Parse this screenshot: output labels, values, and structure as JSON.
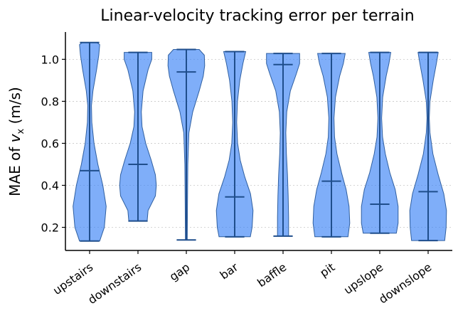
{
  "chart_data": {
    "type": "violin",
    "title": "Linear-velocity tracking error per terrain",
    "ylabel_prefix": "MAE of ",
    "ylabel_var": "v",
    "ylabel_sub": "x",
    "ylabel_suffix": " (m/s)",
    "ylim": [
      0.09,
      1.13
    ],
    "yticks": [
      0.2,
      0.4,
      0.6,
      0.8,
      1.0
    ],
    "ytick_labels": [
      "0.2",
      "0.4",
      "0.6",
      "0.8",
      "1.0"
    ],
    "grid": "y-dotted",
    "categories": [
      "upstairs",
      "downstairs",
      "gap",
      "bar",
      "baffle",
      "pit",
      "upslope",
      "downslope"
    ],
    "min": [
      0.135,
      0.23,
      0.14,
      0.155,
      0.158,
      0.155,
      0.172,
      0.137
    ],
    "max": [
      1.08,
      1.033,
      1.047,
      1.037,
      1.028,
      1.028,
      1.033,
      1.033
    ],
    "median": [
      0.47,
      0.5,
      0.94,
      0.345,
      0.975,
      0.42,
      0.31,
      0.37
    ],
    "density": [
      [
        [
          0.135,
          0.55
        ],
        [
          0.2,
          0.8
        ],
        [
          0.3,
          0.9
        ],
        [
          0.4,
          0.72
        ],
        [
          0.5,
          0.45
        ],
        [
          0.6,
          0.24
        ],
        [
          0.7,
          0.12
        ],
        [
          0.78,
          0.1
        ],
        [
          0.85,
          0.18
        ],
        [
          0.95,
          0.38
        ],
        [
          1.02,
          0.5
        ],
        [
          1.07,
          0.55
        ],
        [
          1.08,
          0.4
        ]
      ],
      [
        [
          0.23,
          0.5
        ],
        [
          0.28,
          0.55
        ],
        [
          0.35,
          0.95
        ],
        [
          0.4,
          1.0
        ],
        [
          0.45,
          0.95
        ],
        [
          0.52,
          0.72
        ],
        [
          0.6,
          0.42
        ],
        [
          0.68,
          0.22
        ],
        [
          0.75,
          0.18
        ],
        [
          0.85,
          0.28
        ],
        [
          0.95,
          0.55
        ],
        [
          1.0,
          0.75
        ],
        [
          1.033,
          0.75
        ]
      ],
      [
        [
          0.14,
          0.05
        ],
        [
          0.3,
          0.06
        ],
        [
          0.5,
          0.08
        ],
        [
          0.65,
          0.14
        ],
        [
          0.75,
          0.35
        ],
        [
          0.85,
          0.7
        ],
        [
          0.92,
          0.92
        ],
        [
          0.97,
          1.0
        ],
        [
          1.02,
          0.98
        ],
        [
          1.047,
          0.7
        ]
      ],
      [
        [
          0.155,
          0.85
        ],
        [
          0.2,
          0.95
        ],
        [
          0.28,
          1.0
        ],
        [
          0.36,
          0.86
        ],
        [
          0.44,
          0.55
        ],
        [
          0.52,
          0.3
        ],
        [
          0.6,
          0.16
        ],
        [
          0.7,
          0.11
        ],
        [
          0.8,
          0.15
        ],
        [
          0.9,
          0.28
        ],
        [
          0.98,
          0.45
        ],
        [
          1.037,
          0.6
        ]
      ],
      [
        [
          0.158,
          0.3
        ],
        [
          0.25,
          0.3
        ],
        [
          0.35,
          0.28
        ],
        [
          0.45,
          0.24
        ],
        [
          0.55,
          0.18
        ],
        [
          0.65,
          0.15
        ],
        [
          0.75,
          0.2
        ],
        [
          0.85,
          0.4
        ],
        [
          0.93,
          0.72
        ],
        [
          0.98,
          0.9
        ],
        [
          1.028,
          0.9
        ]
      ],
      [
        [
          0.155,
          0.9
        ],
        [
          0.22,
          1.0
        ],
        [
          0.3,
          0.96
        ],
        [
          0.38,
          0.8
        ],
        [
          0.46,
          0.55
        ],
        [
          0.55,
          0.3
        ],
        [
          0.63,
          0.17
        ],
        [
          0.72,
          0.14
        ],
        [
          0.82,
          0.22
        ],
        [
          0.92,
          0.45
        ],
        [
          0.98,
          0.65
        ],
        [
          1.028,
          0.75
        ]
      ],
      [
        [
          0.172,
          0.9
        ],
        [
          0.22,
          1.0
        ],
        [
          0.3,
          1.0
        ],
        [
          0.38,
          0.84
        ],
        [
          0.46,
          0.55
        ],
        [
          0.55,
          0.3
        ],
        [
          0.63,
          0.15
        ],
        [
          0.72,
          0.1
        ],
        [
          0.82,
          0.16
        ],
        [
          0.92,
          0.35
        ],
        [
          0.98,
          0.5
        ],
        [
          1.033,
          0.6
        ]
      ],
      [
        [
          0.137,
          0.9
        ],
        [
          0.2,
          0.98
        ],
        [
          0.28,
          1.0
        ],
        [
          0.36,
          0.85
        ],
        [
          0.45,
          0.55
        ],
        [
          0.55,
          0.26
        ],
        [
          0.65,
          0.1
        ],
        [
          0.72,
          0.06
        ],
        [
          0.8,
          0.1
        ],
        [
          0.9,
          0.28
        ],
        [
          0.98,
          0.45
        ],
        [
          1.033,
          0.55
        ]
      ]
    ],
    "colors": {
      "body": "#3b82f6",
      "lines": "#1f4e8c"
    }
  }
}
